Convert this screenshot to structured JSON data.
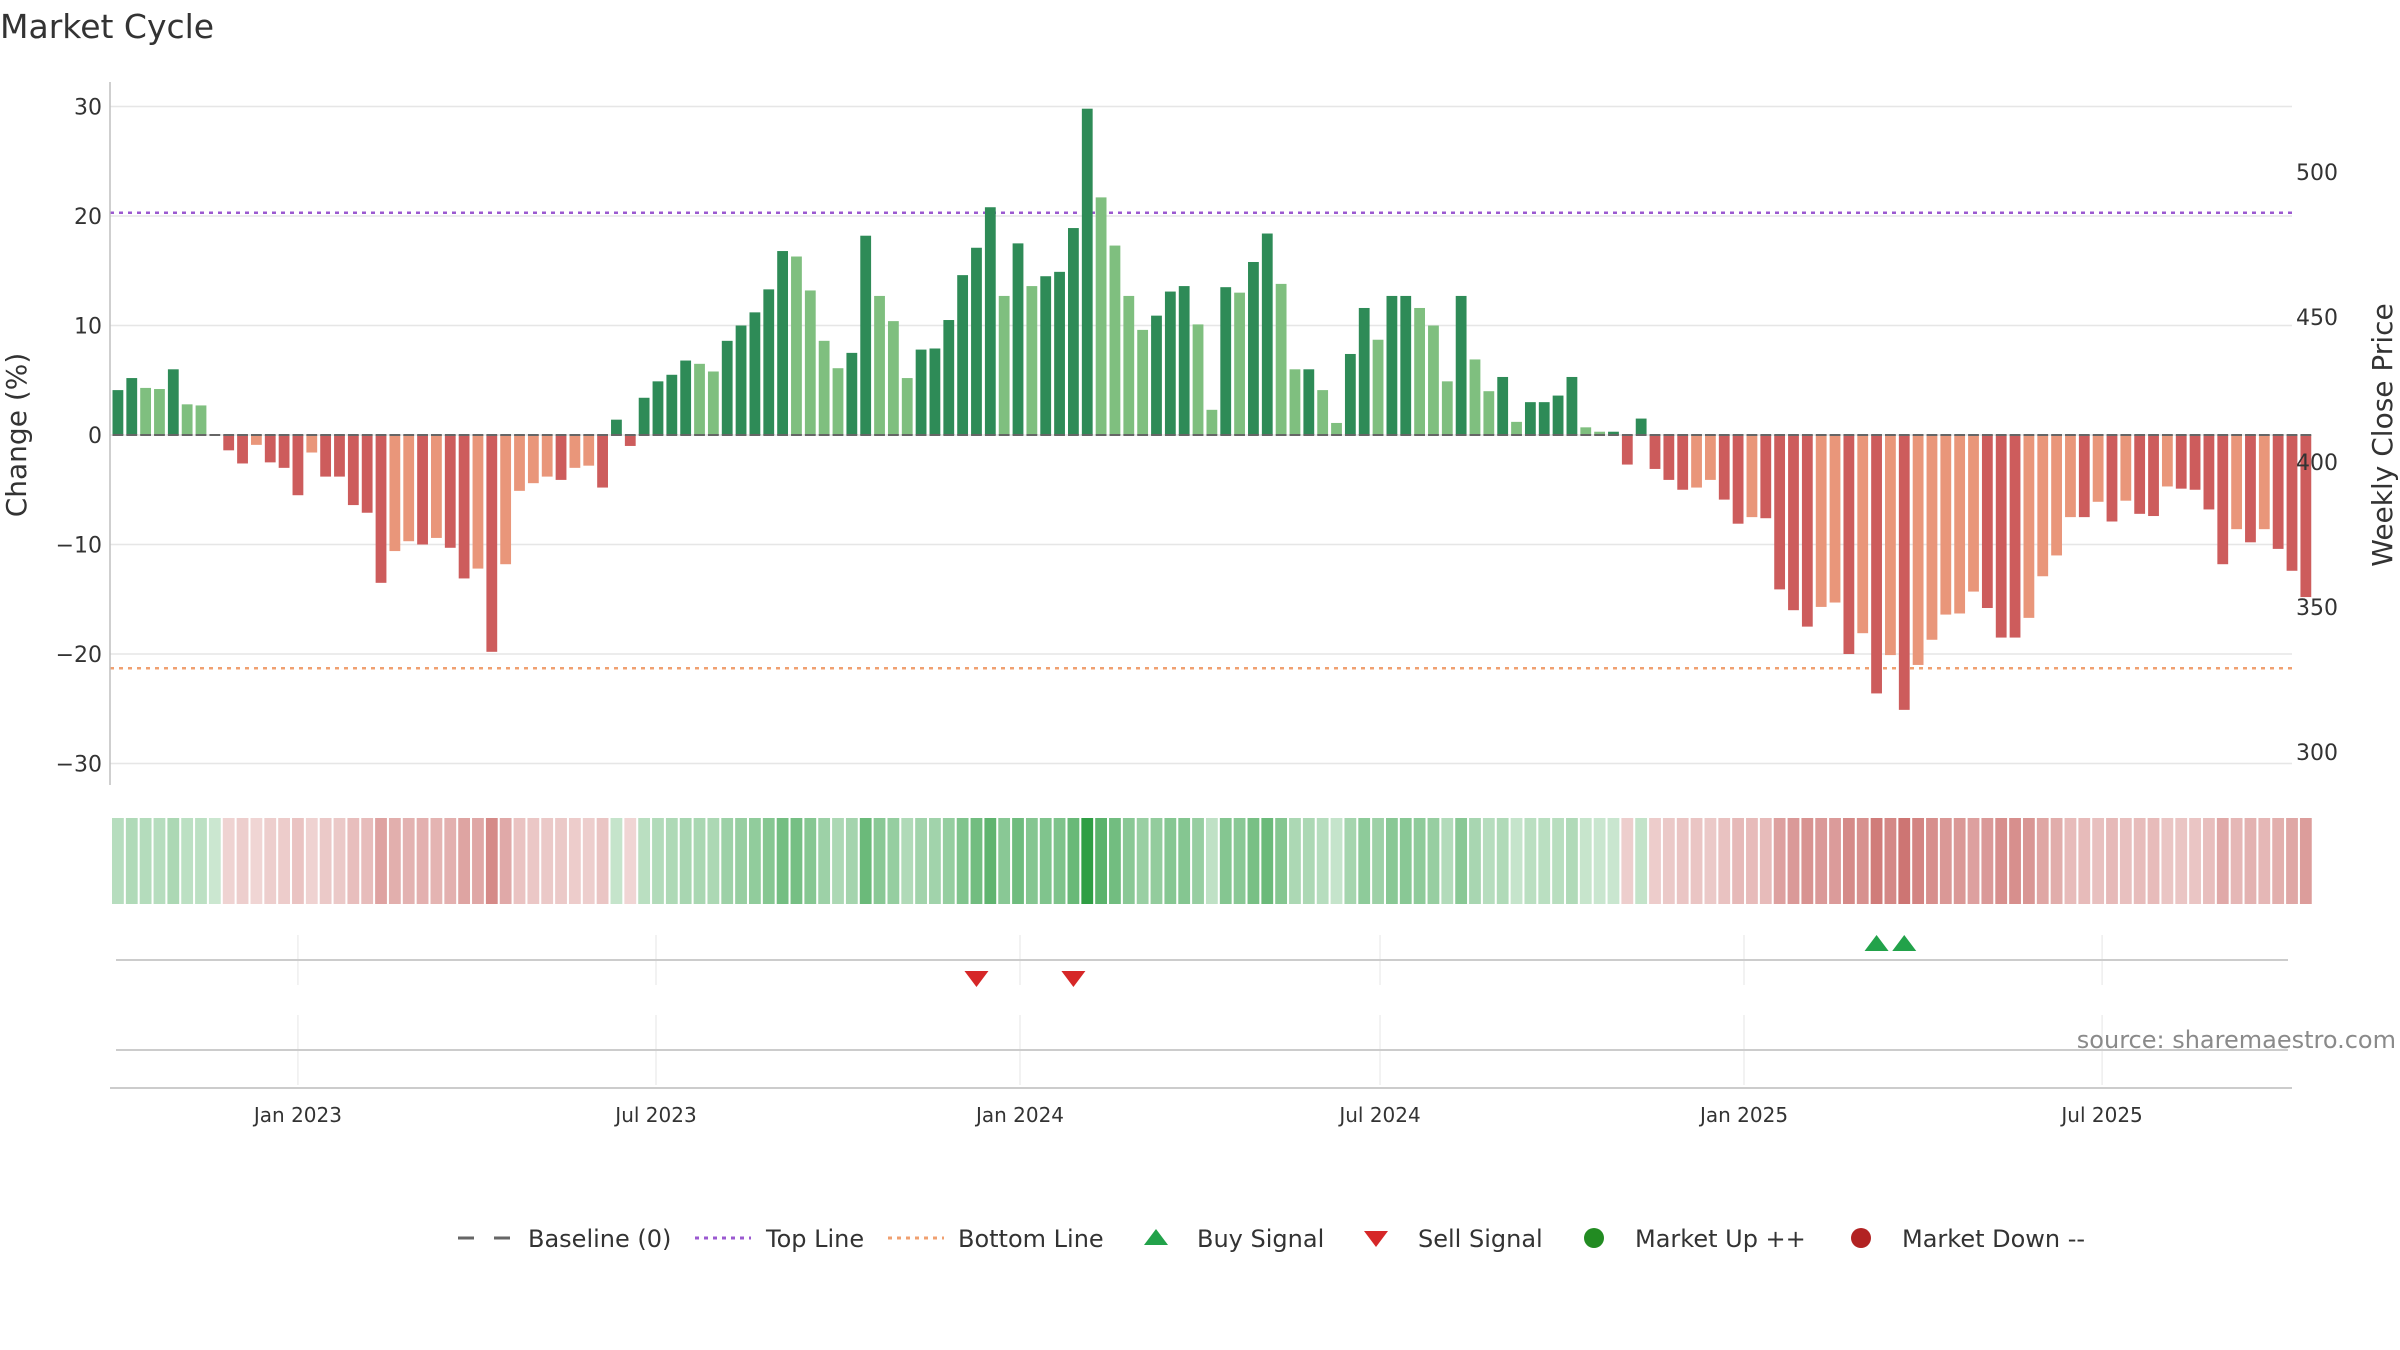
{
  "chart_data": {
    "type": "bar",
    "title": "Market Cycle",
    "ylabel": "Change (%)",
    "y2label": "Weekly Close Price",
    "ylim": [
      -32,
      33
    ],
    "yticks": [
      30,
      20,
      10,
      0,
      -10,
      -20,
      -30
    ],
    "y2ticks": [
      500,
      450,
      400,
      350,
      300
    ],
    "top_line": 20.3,
    "bottom_line": -21.3,
    "x_start": "2022-09-28",
    "x_end": "2025-10-05",
    "date_ticks": [
      {
        "label": "Jan 2023",
        "date": "2023-01-01"
      },
      {
        "label": "Jul 2023",
        "date": "2023-07-01"
      },
      {
        "label": "Jan 2024",
        "date": "2024-01-01"
      },
      {
        "label": "Jul 2024",
        "date": "2024-07-01"
      },
      {
        "label": "Jan 2025",
        "date": "2025-01-01"
      },
      {
        "label": "Jul 2025",
        "date": "2025-07-01"
      }
    ],
    "first_week": "2022-10-02",
    "values": [
      4.1,
      5.2,
      4.3,
      4.2,
      6.0,
      2.8,
      2.7,
      0,
      -1.4,
      -2.6,
      -0.9,
      -2.5,
      -3.0,
      -5.5,
      -1.6,
      -3.8,
      -3.8,
      -6.4,
      -7.1,
      -13.5,
      -10.6,
      -9.7,
      -10.0,
      -9.4,
      -10.3,
      -13.1,
      -12.2,
      -19.8,
      -11.8,
      -5.1,
      -4.4,
      -3.8,
      -4.1,
      -3.0,
      -2.8,
      -4.8,
      1.4,
      -1.0,
      3.4,
      4.9,
      5.5,
      6.8,
      6.5,
      5.8,
      8.6,
      10.0,
      11.2,
      13.3,
      16.8,
      16.3,
      13.2,
      8.6,
      6.1,
      7.5,
      18.2,
      12.7,
      10.4,
      5.2,
      7.8,
      7.9,
      10.5,
      14.6,
      17.1,
      20.8,
      12.7,
      17.5,
      13.6,
      14.5,
      14.9,
      18.9,
      29.8,
      21.7,
      17.3,
      12.7,
      9.6,
      10.9,
      13.1,
      13.6,
      10.1,
      2.3,
      13.5,
      13.0,
      15.8,
      18.4,
      13.8,
      6.0,
      6.0,
      4.1,
      1.1,
      7.4,
      11.6,
      8.7,
      12.7,
      12.7,
      11.6,
      10.0,
      4.9,
      12.7,
      6.9,
      4.0,
      5.3,
      1.2,
      3.0,
      3.0,
      3.6,
      5.3,
      0.7,
      0.3,
      0.3,
      -2.7,
      1.5,
      -3.1,
      -4.1,
      -5.0,
      -4.8,
      -4.1,
      -5.9,
      -8.1,
      -7.5,
      -7.6,
      -14.1,
      -16.0,
      -17.5,
      -15.7,
      -15.3,
      -20.0,
      -18.1,
      -23.6,
      -20.1,
      -25.1,
      -21.0,
      -18.7,
      -16.4,
      -16.3,
      -14.3,
      -15.8,
      -18.5,
      -18.5,
      -16.7,
      -12.9,
      -11.0,
      -7.5,
      -7.5,
      -6.1,
      -7.9,
      -6.0,
      -7.2,
      -7.4,
      -4.7,
      -4.9,
      -5.0,
      -6.8,
      -11.8,
      -8.6,
      -9.8,
      -8.6,
      -10.4,
      -12.4,
      -14.8
    ],
    "buy_signals": [
      "2025-03-09",
      "2025-03-23"
    ],
    "sell_signals": [
      "2023-12-10",
      "2024-01-28"
    ],
    "legend": [
      {
        "label": "Baseline (0)",
        "symbol": "dash",
        "color": "#666666"
      },
      {
        "label": "Top Line",
        "symbol": "dot",
        "color": "#9b59d0"
      },
      {
        "label": "Bottom Line",
        "symbol": "dot",
        "color": "#f0a070"
      },
      {
        "label": "Buy Signal",
        "symbol": "triangle-up",
        "color": "#22a24a"
      },
      {
        "label": "Sell Signal",
        "symbol": "triangle-down",
        "color": "#d62728"
      },
      {
        "label": "Market Up ++",
        "symbol": "circle",
        "color": "#228b22"
      },
      {
        "label": "Market Down --",
        "symbol": "circle",
        "color": "#b22222"
      }
    ],
    "colors": {
      "up_strong": "#2e8b57",
      "up_weak": "#7fbf7f",
      "down_strong": "#cd5c5c",
      "down_weak": "#e9967a",
      "grid": "#e6e6e6",
      "baseline": "#666666"
    },
    "source": "source: sharemaestro.com"
  }
}
